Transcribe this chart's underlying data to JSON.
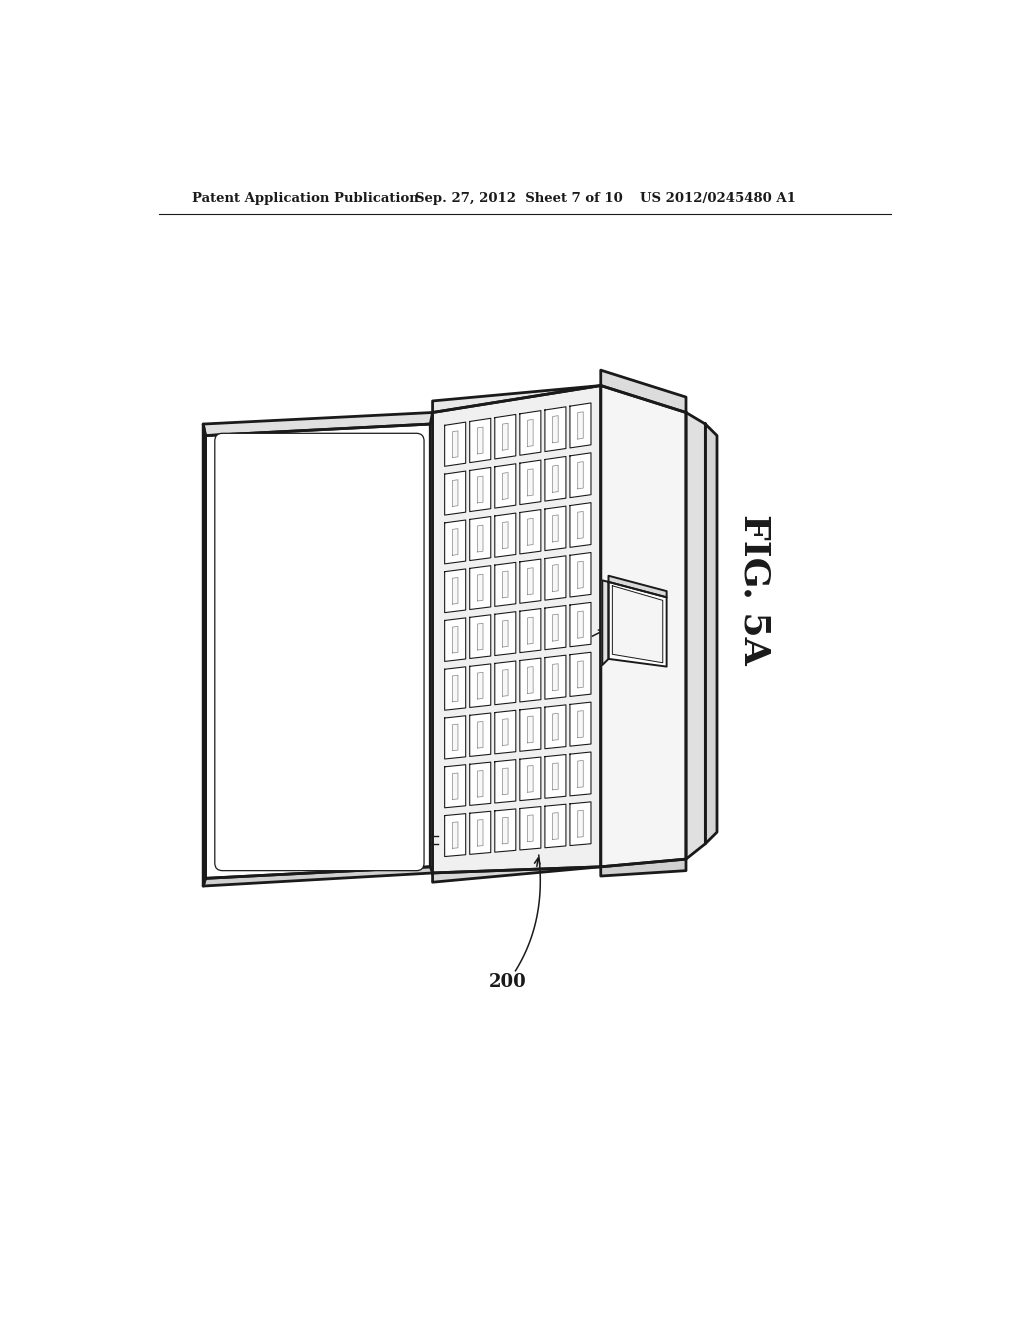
{
  "header_left": "Patent Application Publication",
  "header_mid": "Sep. 27, 2012  Sheet 7 of 10",
  "header_right": "US 2012/0245480 A1",
  "fig_label": "FIG. 5A",
  "part_label": "200",
  "bg_color": "#ffffff",
  "line_color": "#1a1a1a",
  "key_rows": 9,
  "key_cols": 6
}
